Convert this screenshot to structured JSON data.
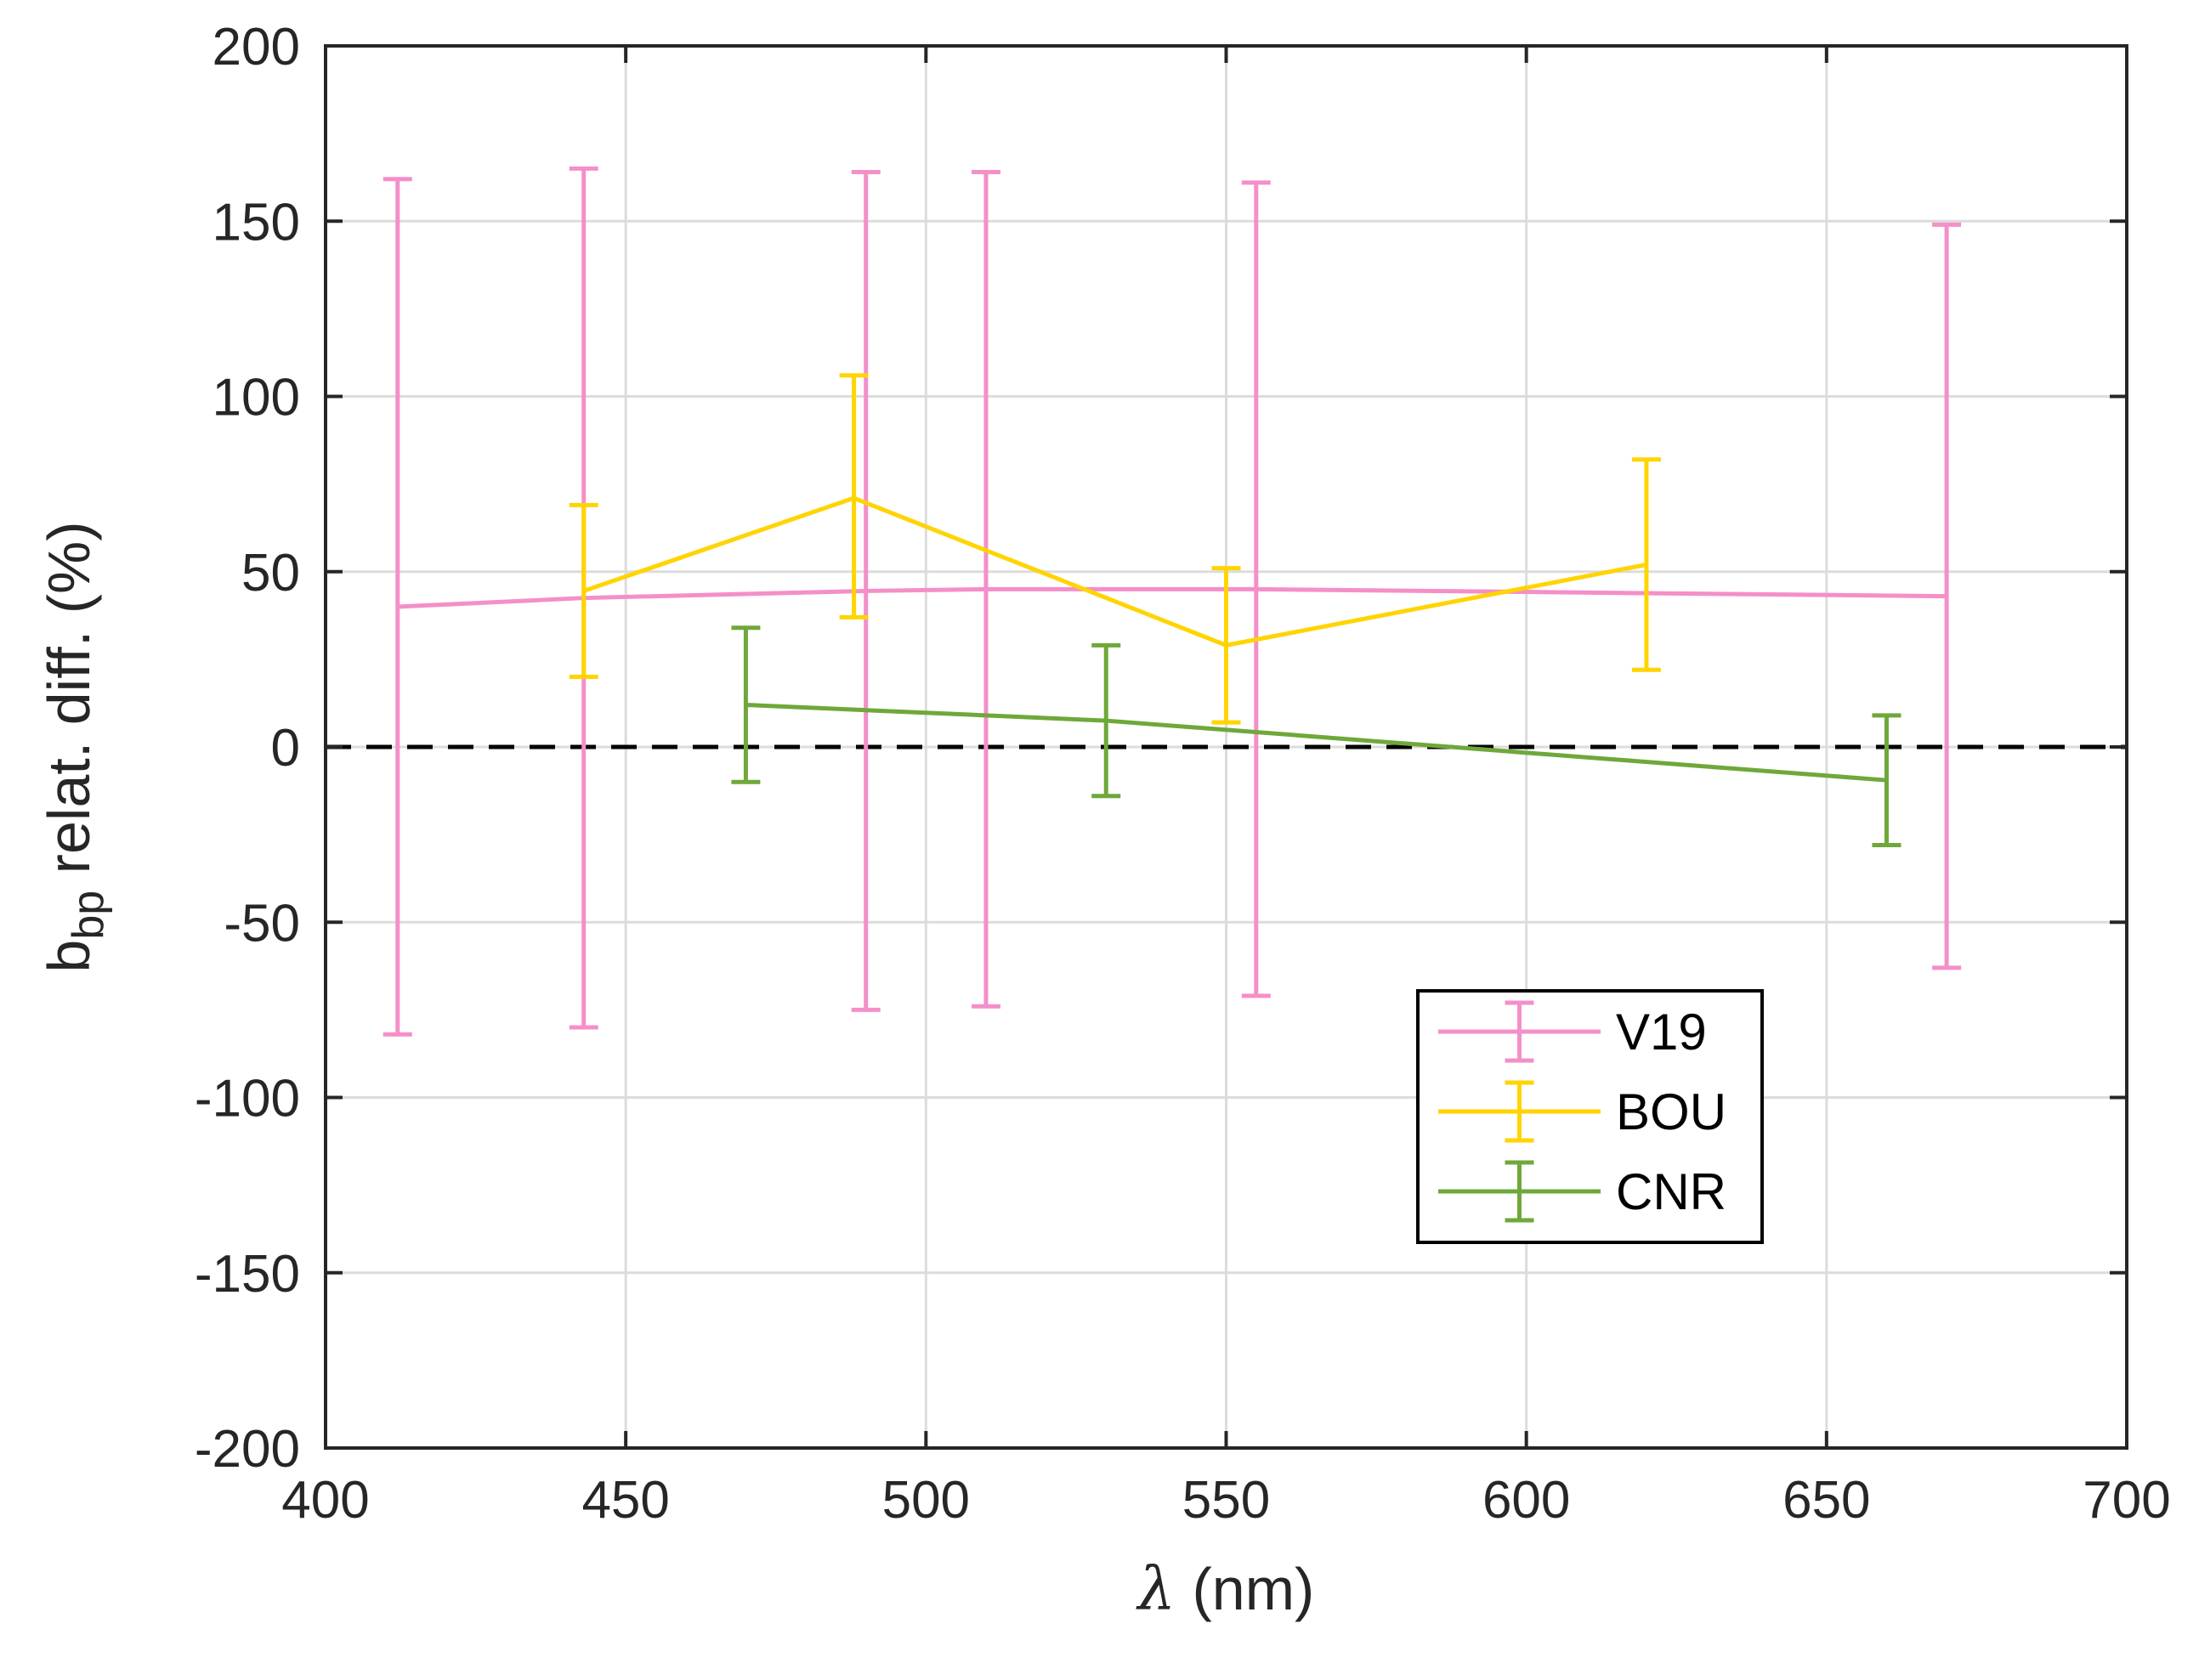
{
  "chart_data": {
    "type": "line",
    "title": "",
    "xlabel": "(nm)",
    "xlabel_symbol": "λ",
    "ylabel": "b",
    "ylabel_sub": "bp",
    "ylabel_rest": " relat. diff. (%)",
    "xlim": [
      400,
      700
    ],
    "ylim": [
      -200,
      200
    ],
    "xticks": [
      400,
      450,
      500,
      550,
      600,
      650,
      700
    ],
    "yticks": [
      -200,
      -150,
      -100,
      -50,
      0,
      50,
      100,
      150,
      200
    ],
    "grid": true,
    "reference_line": {
      "y": 0,
      "style": "dashed",
      "color": "#000000"
    },
    "legend_position": "lower-right",
    "series": [
      {
        "name": "V19",
        "color": "#F48FC8",
        "x": [
          412,
          443,
          490,
          510,
          555,
          670
        ],
        "y": [
          40,
          42.5,
          44.5,
          45,
          45,
          43
        ],
        "err_low": [
          -82,
          -80,
          -75,
          -74,
          -71,
          -63
        ],
        "err_high": [
          162,
          165,
          164,
          164,
          161,
          149
        ]
      },
      {
        "name": "BOU",
        "color": "#FFD400",
        "x": [
          443,
          488,
          550,
          620
        ],
        "y": [
          44.5,
          71,
          29,
          52
        ],
        "err_low": [
          20,
          37,
          7,
          22
        ],
        "err_high": [
          69,
          106,
          51,
          82
        ]
      },
      {
        "name": "CNR",
        "color": "#6FA83A",
        "x": [
          470,
          530,
          660
        ],
        "y": [
          12,
          7.5,
          -9.5
        ],
        "err_low": [
          -10,
          -14,
          -28
        ],
        "err_high": [
          34,
          29,
          9
        ]
      }
    ]
  }
}
